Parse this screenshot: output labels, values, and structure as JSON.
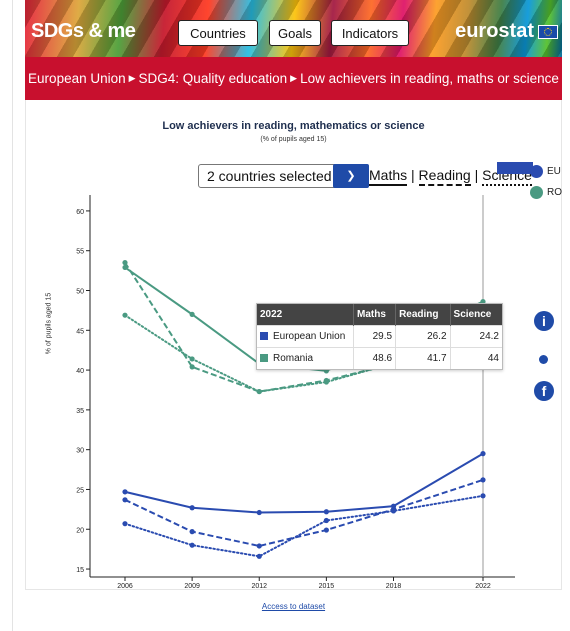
{
  "header": {
    "logo": "SDGs & me",
    "nav": [
      "Countries",
      "Goals",
      "Indicators"
    ],
    "brand": "eurostat"
  },
  "breadcrumb": {
    "items": [
      "European Union",
      "SDG4: Quality education",
      "Low achievers in reading, maths or science"
    ]
  },
  "chart_header": {
    "title": "Low achievers in reading, mathematics or science",
    "subtitle": "(% of pupils aged 15)"
  },
  "controls": {
    "select_value": "2 countries selected",
    "toggles": [
      "Maths",
      "Reading",
      "Science"
    ],
    "legend": [
      {
        "label": "EU",
        "color": "#2a4bb0"
      },
      {
        "label": "RO",
        "color": "#4a9a82"
      }
    ]
  },
  "tooltip": {
    "headers": [
      "2022",
      "Maths",
      "Reading",
      "Science"
    ],
    "rows": [
      {
        "name": "European Union",
        "color": "#2a4bb0",
        "values": [
          "29.5",
          "26.2",
          "24.2"
        ]
      },
      {
        "name": "Romania",
        "color": "#4a9a82",
        "values": [
          "48.6",
          "41.7",
          "44"
        ]
      }
    ]
  },
  "chart_data": {
    "type": "line",
    "x": [
      2006,
      2009,
      2012,
      2015,
      2018,
      2022
    ],
    "ylabel": "% of pupils aged 15",
    "ylim": [
      14,
      62
    ],
    "yticks": [
      15,
      20,
      25,
      30,
      35,
      40,
      45,
      50,
      55,
      60
    ],
    "series": [
      {
        "name": "European Union - Maths",
        "color": "#2a4bb0",
        "style": "solid",
        "values": [
          24.7,
          22.7,
          22.1,
          22.2,
          22.9,
          29.5
        ]
      },
      {
        "name": "European Union - Reading",
        "color": "#2a4bb0",
        "style": "dashed",
        "values": [
          23.7,
          19.7,
          17.9,
          19.9,
          22.5,
          26.2
        ]
      },
      {
        "name": "European Union - Science",
        "color": "#2a4bb0",
        "style": "dotted",
        "values": [
          20.7,
          18.0,
          16.6,
          21.1,
          22.3,
          24.2
        ]
      },
      {
        "name": "Romania - Maths",
        "color": "#4a9a82",
        "style": "solid",
        "values": [
          52.9,
          47.0,
          40.8,
          39.9,
          null,
          48.6
        ]
      },
      {
        "name": "Romania - Reading",
        "color": "#4a9a82",
        "style": "dashed",
        "values": [
          53.5,
          40.4,
          37.3,
          38.7,
          40.8,
          41.7
        ]
      },
      {
        "name": "Romania - Science",
        "color": "#4a9a82",
        "style": "dotted",
        "values": [
          46.9,
          41.4,
          37.3,
          38.5,
          null,
          44
        ]
      }
    ],
    "hover_x": 2022
  },
  "footer": {
    "access_link": "Access to dataset"
  }
}
